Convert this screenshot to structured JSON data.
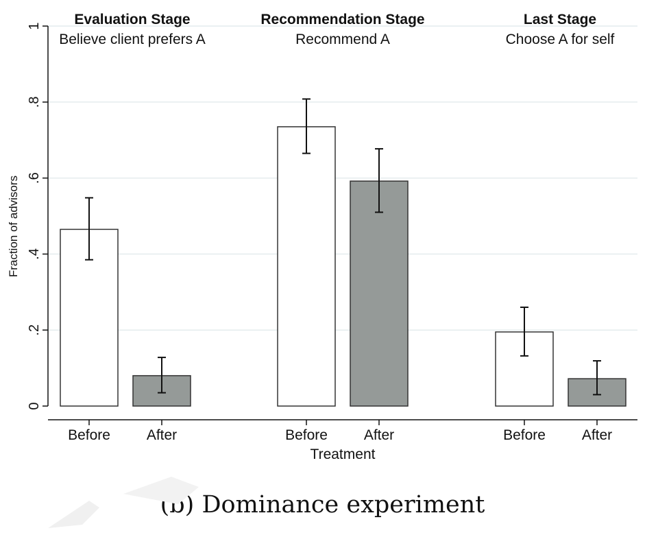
{
  "chart_data": {
    "type": "bar",
    "ylabel": "Fraction of advisors",
    "xlabel": "Treatment",
    "ylim": [
      0,
      1
    ],
    "yticks": [
      {
        "value": 0,
        "label": "0"
      },
      {
        "value": 0.2,
        "label": ".2"
      },
      {
        "value": 0.4,
        "label": ".4"
      },
      {
        "value": 0.6,
        "label": ".6"
      },
      {
        "value": 0.8,
        "label": ".8"
      },
      {
        "value": 1,
        "label": "1"
      }
    ],
    "grid": true,
    "colors": {
      "before": "#ffffff",
      "after": "#959a98",
      "edge": "#333333",
      "grid": "#e4ecee"
    },
    "groups": [
      {
        "title": "Evaluation Stage",
        "subtitle": "Believe client prefers A",
        "bars": [
          {
            "label": "Before",
            "value": 0.465,
            "ci_low": 0.385,
            "ci_high": 0.548
          },
          {
            "label": "After",
            "value": 0.08,
            "ci_low": 0.035,
            "ci_high": 0.128
          }
        ]
      },
      {
        "title": "Recommendation Stage",
        "subtitle": "Recommend A",
        "bars": [
          {
            "label": "Before",
            "value": 0.735,
            "ci_low": 0.665,
            "ci_high": 0.808
          },
          {
            "label": "After",
            "value": 0.592,
            "ci_low": 0.51,
            "ci_high": 0.677
          }
        ]
      },
      {
        "title": "Last Stage",
        "subtitle": "Choose A for self",
        "bars": [
          {
            "label": "Before",
            "value": 0.195,
            "ci_low": 0.132,
            "ci_high": 0.26
          },
          {
            "label": "After",
            "value": 0.072,
            "ci_low": 0.03,
            "ci_high": 0.119
          }
        ]
      }
    ]
  },
  "caption": "(b) Dominance experiment"
}
